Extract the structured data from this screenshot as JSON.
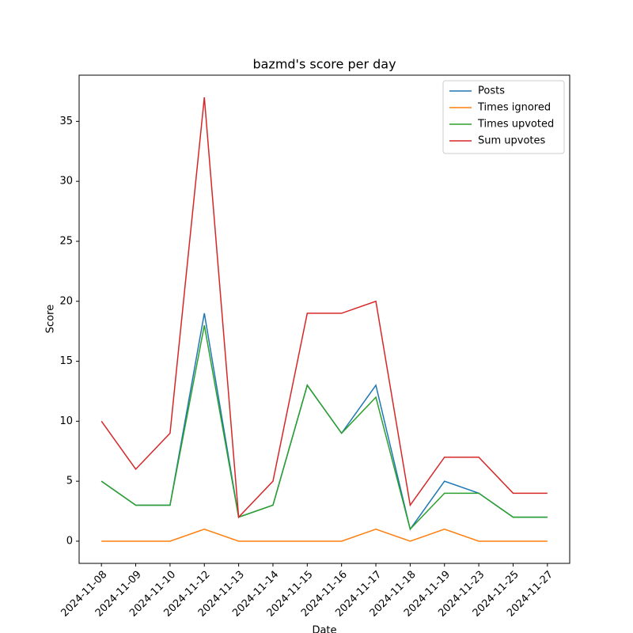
{
  "chart_data": {
    "type": "line",
    "title": "bazmd's score per day",
    "x_label": "Date",
    "y_label": "Score",
    "categories": [
      "2024-11-08",
      "2024-11-09",
      "2024-11-10",
      "2024-11-12",
      "2024-11-13",
      "2024-11-14",
      "2024-11-15",
      "2024-11-16",
      "2024-11-17",
      "2024-11-18",
      "2024-11-19",
      "2024-11-23",
      "2024-11-25",
      "2024-11-27"
    ],
    "series": [
      {
        "name": "Posts",
        "color": "#1f77b4",
        "values": [
          5,
          3,
          3,
          19,
          2,
          3,
          13,
          9,
          13,
          1,
          5,
          4,
          2,
          2
        ]
      },
      {
        "name": "Times ignored",
        "color": "#ff7f0e",
        "values": [
          0,
          0,
          0,
          1,
          0,
          0,
          0,
          0,
          1,
          0,
          1,
          0,
          0,
          0
        ]
      },
      {
        "name": "Times upvoted",
        "color": "#2ca02c",
        "values": [
          5,
          3,
          3,
          18,
          2,
          3,
          13,
          9,
          12,
          1,
          4,
          4,
          2,
          2
        ]
      },
      {
        "name": "Sum upvotes",
        "color": "#d62728",
        "values": [
          10,
          6,
          9,
          37,
          2,
          5,
          19,
          19,
          20,
          3,
          7,
          7,
          4,
          4
        ]
      }
    ],
    "ylim": [
      -1.85,
      38.85
    ],
    "yticks": [
      0,
      5,
      10,
      15,
      20,
      25,
      30,
      35
    ],
    "grid": false,
    "legend": "upper right"
  }
}
